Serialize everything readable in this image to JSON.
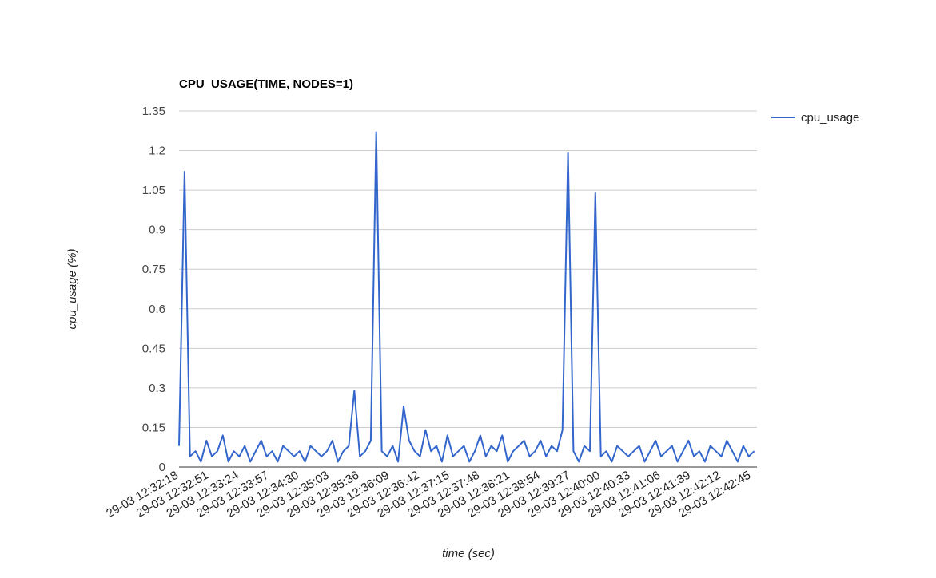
{
  "chart_data": {
    "type": "line",
    "title": "CPU_USAGE(TIME, NODES=1)",
    "xlabel": "time (sec)",
    "ylabel": "cpu_usage (%)",
    "ylim": [
      0,
      1.35
    ],
    "yticks": [
      "0",
      "0.15",
      "0.3",
      "0.45",
      "0.6",
      "0.75",
      "0.9",
      "1.05",
      "1.2",
      "1.35"
    ],
    "xticks": [
      "29-03 12:32:18",
      "29-03 12:32:51",
      "29-03 12:33:24",
      "29-03 12:33:57",
      "29-03 12:34:30",
      "29-03 12:35:03",
      "29-03 12:35:36",
      "29-03 12:36:09",
      "29-03 12:36:42",
      "29-03 12:37:15",
      "29-03 12:37:48",
      "29-03 12:38:21",
      "29-03 12:38:54",
      "29-03 12:39:27",
      "29-03 12:40:00",
      "29-03 12:40:33",
      "29-03 12:41:06",
      "29-03 12:41:39",
      "29-03 12:42:12",
      "29-03 12:42:45"
    ],
    "grid": true,
    "legend_position": "right",
    "color": "#3366cc",
    "series": [
      {
        "name": "cpu_usage",
        "x": [
          "12:32:18",
          "12:32:24",
          "12:32:30",
          "12:32:36",
          "12:32:42",
          "12:32:48",
          "12:32:54",
          "12:33:00",
          "12:33:06",
          "12:33:12",
          "12:33:18",
          "12:33:24",
          "12:33:30",
          "12:33:36",
          "12:33:42",
          "12:33:48",
          "12:33:54",
          "12:34:00",
          "12:34:06",
          "12:34:12",
          "12:34:18",
          "12:34:24",
          "12:34:30",
          "12:34:36",
          "12:34:42",
          "12:34:48",
          "12:34:54",
          "12:35:00",
          "12:35:06",
          "12:35:12",
          "12:35:18",
          "12:35:24",
          "12:35:30",
          "12:35:36",
          "12:35:42",
          "12:35:48",
          "12:35:54",
          "12:36:00",
          "12:36:06",
          "12:36:12",
          "12:36:18",
          "12:36:24",
          "12:36:30",
          "12:36:36",
          "12:36:42",
          "12:36:48",
          "12:36:54",
          "12:37:00",
          "12:37:06",
          "12:37:12",
          "12:37:18",
          "12:37:24",
          "12:37:30",
          "12:37:36",
          "12:37:42",
          "12:37:48",
          "12:37:54",
          "12:38:00",
          "12:38:06",
          "12:38:12",
          "12:38:18",
          "12:38:24",
          "12:38:30",
          "12:38:36",
          "12:38:42",
          "12:38:48",
          "12:38:54",
          "12:39:00",
          "12:39:06",
          "12:39:12",
          "12:39:18",
          "12:39:24",
          "12:39:30",
          "12:39:36",
          "12:39:42",
          "12:39:48",
          "12:39:54",
          "12:40:00",
          "12:40:06",
          "12:40:12",
          "12:40:18",
          "12:40:24",
          "12:40:30",
          "12:40:36",
          "12:40:42",
          "12:40:48",
          "12:40:54",
          "12:41:00",
          "12:41:06",
          "12:41:12",
          "12:41:18",
          "12:41:24",
          "12:41:30",
          "12:41:36",
          "12:41:42",
          "12:41:48",
          "12:41:54",
          "12:42:00",
          "12:42:06",
          "12:42:12",
          "12:42:18",
          "12:42:24",
          "12:42:30",
          "12:42:36",
          "12:42:42",
          "12:42:48"
        ],
        "values": [
          0.08,
          1.12,
          0.04,
          0.06,
          0.02,
          0.1,
          0.04,
          0.06,
          0.12,
          0.02,
          0.06,
          0.04,
          0.08,
          0.02,
          0.06,
          0.1,
          0.04,
          0.06,
          0.02,
          0.08,
          0.06,
          0.04,
          0.06,
          0.02,
          0.08,
          0.06,
          0.04,
          0.06,
          0.1,
          0.02,
          0.06,
          0.08,
          0.29,
          0.04,
          0.06,
          0.1,
          1.27,
          0.06,
          0.04,
          0.08,
          0.02,
          0.23,
          0.1,
          0.06,
          0.04,
          0.14,
          0.06,
          0.08,
          0.02,
          0.12,
          0.04,
          0.06,
          0.08,
          0.02,
          0.06,
          0.12,
          0.04,
          0.08,
          0.06,
          0.12,
          0.02,
          0.06,
          0.08,
          0.1,
          0.04,
          0.06,
          0.1,
          0.04,
          0.08,
          0.06,
          0.14,
          1.19,
          0.06,
          0.02,
          0.08,
          0.06,
          1.04,
          0.04,
          0.06,
          0.02,
          0.08,
          0.06,
          0.04,
          0.06,
          0.08,
          0.02,
          0.06,
          0.1,
          0.04,
          0.06,
          0.08,
          0.02,
          0.06,
          0.1,
          0.04,
          0.06,
          0.02,
          0.08,
          0.06,
          0.04,
          0.1,
          0.06,
          0.02,
          0.08,
          0.04,
          0.06
        ]
      }
    ]
  }
}
